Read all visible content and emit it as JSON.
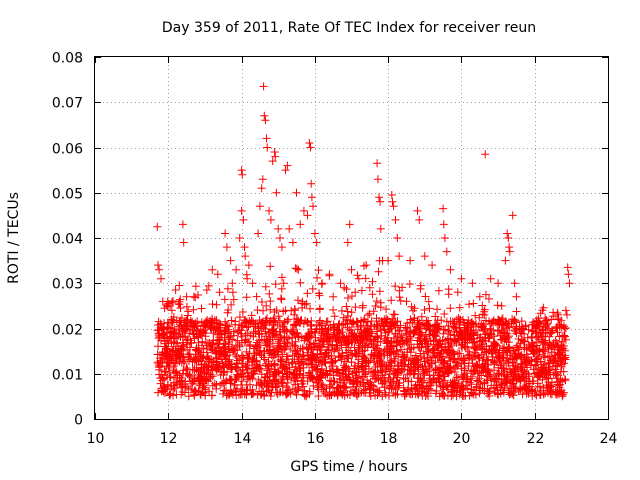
{
  "chart_data": {
    "type": "scatter",
    "title": "Day 359 of 2011, Rate Of TEC Index for receiver reun",
    "xlabel": "GPS time / hours",
    "ylabel": "ROTI / TECUs",
    "xlim": [
      10,
      24
    ],
    "ylim": [
      0,
      0.08
    ],
    "xticks": [
      10,
      12,
      14,
      16,
      18,
      20,
      22,
      24
    ],
    "xtick_labels": [
      "10",
      "12",
      "14",
      "16",
      "18",
      "20",
      "22",
      "24"
    ],
    "yticks": [
      0,
      0.01,
      0.02,
      0.03,
      0.04,
      0.05,
      0.06,
      0.07,
      0.08
    ],
    "ytick_labels": [
      "0",
      "0.01",
      "0.02",
      "0.03",
      "0.04",
      "0.05",
      "0.06",
      "0.07",
      "0.08"
    ],
    "grid": true,
    "marker": "+",
    "color": "#ff0000",
    "series": [
      {
        "name": "ROTI",
        "points": [
          [
            11.7,
            0.0425
          ],
          [
            11.72,
            0.034
          ],
          [
            11.75,
            0.033
          ],
          [
            11.8,
            0.031
          ],
          [
            11.85,
            0.026
          ],
          [
            11.9,
            0.0245
          ],
          [
            12.0,
            0.0255
          ],
          [
            12.05,
            0.025
          ],
          [
            12.1,
            0.024
          ],
          [
            12.2,
            0.0285
          ],
          [
            12.3,
            0.0295
          ],
          [
            12.4,
            0.043
          ],
          [
            12.42,
            0.039
          ],
          [
            12.5,
            0.027
          ],
          [
            13.05,
            0.0285
          ],
          [
            13.2,
            0.033
          ],
          [
            13.35,
            0.032
          ],
          [
            13.55,
            0.041
          ],
          [
            13.6,
            0.038
          ],
          [
            13.7,
            0.035
          ],
          [
            13.85,
            0.033
          ],
          [
            13.95,
            0.04
          ],
          [
            14.0,
            0.046
          ],
          [
            14.0,
            0.055
          ],
          [
            14.02,
            0.054
          ],
          [
            14.05,
            0.044
          ],
          [
            14.08,
            0.038
          ],
          [
            14.1,
            0.036
          ],
          [
            14.2,
            0.034
          ],
          [
            14.3,
            0.03
          ],
          [
            14.45,
            0.041
          ],
          [
            14.5,
            0.047
          ],
          [
            14.55,
            0.051
          ],
          [
            14.58,
            0.053
          ],
          [
            14.6,
            0.0735
          ],
          [
            14.62,
            0.067
          ],
          [
            14.65,
            0.066
          ],
          [
            14.68,
            0.062
          ],
          [
            14.7,
            0.06
          ],
          [
            14.75,
            0.046
          ],
          [
            14.8,
            0.044
          ],
          [
            14.85,
            0.057
          ],
          [
            14.9,
            0.059
          ],
          [
            14.92,
            0.058
          ],
          [
            14.95,
            0.05
          ],
          [
            15.0,
            0.042
          ],
          [
            15.05,
            0.04
          ],
          [
            15.1,
            0.038
          ],
          [
            15.2,
            0.055
          ],
          [
            15.25,
            0.056
          ],
          [
            15.3,
            0.042
          ],
          [
            15.4,
            0.039
          ],
          [
            15.5,
            0.05
          ],
          [
            15.6,
            0.043
          ],
          [
            15.7,
            0.046
          ],
          [
            15.8,
            0.045
          ],
          [
            15.85,
            0.061
          ],
          [
            15.88,
            0.06
          ],
          [
            15.9,
            0.052
          ],
          [
            15.92,
            0.049
          ],
          [
            15.95,
            0.047
          ],
          [
            16.0,
            0.041
          ],
          [
            16.05,
            0.039
          ],
          [
            16.2,
            0.03
          ],
          [
            16.4,
            0.032
          ],
          [
            16.7,
            0.03
          ],
          [
            16.9,
            0.039
          ],
          [
            16.95,
            0.043
          ],
          [
            17.0,
            0.033
          ],
          [
            17.2,
            0.031
          ],
          [
            17.4,
            0.034
          ],
          [
            17.5,
            0.029
          ],
          [
            17.7,
            0.0565
          ],
          [
            17.72,
            0.053
          ],
          [
            17.75,
            0.049
          ],
          [
            17.78,
            0.048
          ],
          [
            17.8,
            0.042
          ],
          [
            17.85,
            0.035
          ],
          [
            18.0,
            0.035
          ],
          [
            18.1,
            0.0495
          ],
          [
            18.12,
            0.048
          ],
          [
            18.15,
            0.047
          ],
          [
            18.2,
            0.044
          ],
          [
            18.25,
            0.04
          ],
          [
            18.3,
            0.036
          ],
          [
            18.6,
            0.035
          ],
          [
            18.8,
            0.046
          ],
          [
            18.85,
            0.044
          ],
          [
            19.0,
            0.036
          ],
          [
            19.2,
            0.034
          ],
          [
            19.5,
            0.0465
          ],
          [
            19.52,
            0.043
          ],
          [
            19.55,
            0.04
          ],
          [
            19.6,
            0.037
          ],
          [
            19.7,
            0.033
          ],
          [
            20.0,
            0.031
          ],
          [
            20.3,
            0.03
          ],
          [
            20.65,
            0.0585
          ],
          [
            20.8,
            0.031
          ],
          [
            21.0,
            0.03
          ],
          [
            21.2,
            0.035
          ],
          [
            21.25,
            0.041
          ],
          [
            21.28,
            0.04
          ],
          [
            21.3,
            0.038
          ],
          [
            21.32,
            0.037
          ],
          [
            21.4,
            0.045
          ],
          [
            21.45,
            0.03
          ],
          [
            21.5,
            0.027
          ],
          [
            22.9,
            0.0335
          ],
          [
            22.92,
            0.032
          ],
          [
            22.95,
            0.03
          ],
          [
            22.85,
            0.024
          ],
          [
            22.88,
            0.023
          ],
          [
            16.8,
            0.029
          ],
          [
            15.55,
            0.033
          ],
          [
            14.15,
            0.031
          ],
          [
            12.7,
            0.027
          ],
          [
            13.4,
            0.028
          ],
          [
            19.9,
            0.028
          ],
          [
            20.5,
            0.027
          ],
          [
            17.1,
            0.028
          ],
          [
            18.5,
            0.026
          ],
          [
            21.1,
            0.025
          ],
          [
            16.5,
            0.027
          ],
          [
            15.15,
            0.03
          ]
        ],
        "dense_band": {
          "x_range": [
            11.7,
            22.85
          ],
          "y_core": [
            0.005,
            0.022
          ],
          "note": "thousands of overlapping samples forming a continuous band between roughly 0.005 and 0.022 TECU/min"
        }
      }
    ]
  }
}
